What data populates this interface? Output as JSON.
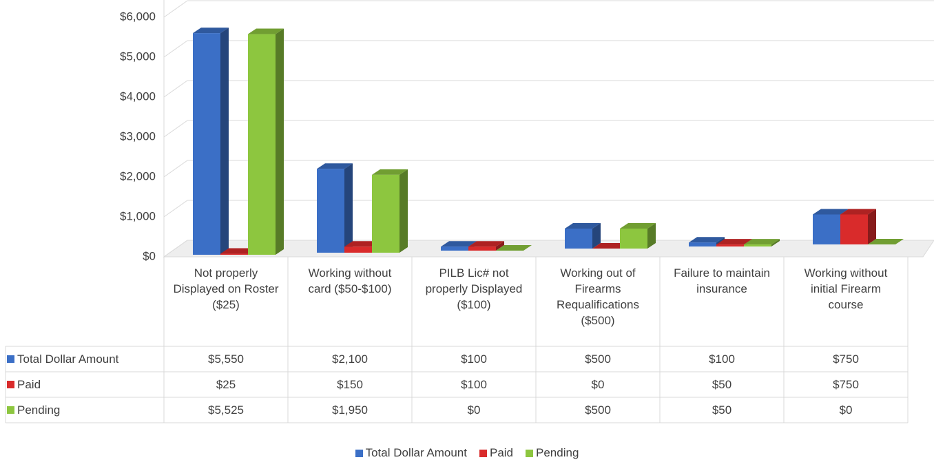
{
  "chart_data": {
    "type": "bar",
    "categories": [
      "Not properly Displayed on Roster ($25)",
      "Working without card ($50-$100)",
      "PILB Lic# not properly Displayed ($100)",
      "Working out of Firearms Requalifications ($500)",
      "Failure to maintain insurance",
      "Working without initial Firearm course"
    ],
    "series": [
      {
        "name": "Total Dollar Amount",
        "color": "#3b6fc6",
        "values": [
          5550,
          2100,
          100,
          500,
          100,
          750
        ],
        "value_labels": [
          "$5,550",
          "$2,100",
          "$100",
          "$500",
          "$100",
          "$750"
        ]
      },
      {
        "name": "Paid",
        "color": "#d92b2b",
        "values": [
          25,
          150,
          100,
          0,
          50,
          750
        ],
        "value_labels": [
          "$25",
          "$150",
          "$100",
          "$0",
          "$50",
          "$750"
        ]
      },
      {
        "name": "Pending",
        "color": "#8dc63f",
        "values": [
          5525,
          1950,
          0,
          500,
          50,
          0
        ],
        "value_labels": [
          "$5,525",
          "$1,950",
          "$0",
          "$500",
          "$50",
          "$0"
        ]
      }
    ],
    "ylim": [
      0,
      6000
    ],
    "yticks": [
      {
        "value": 0,
        "label": "$0"
      },
      {
        "value": 1000,
        "label": "$1,000"
      },
      {
        "value": 2000,
        "label": "$2,000"
      },
      {
        "value": 3000,
        "label": "$3,000"
      },
      {
        "value": 4000,
        "label": "$4,000"
      },
      {
        "value": 5000,
        "label": "$5,000"
      },
      {
        "value": 6000,
        "label": "$6,000"
      }
    ],
    "grid": true,
    "data_table": true,
    "legend": "bottom"
  }
}
